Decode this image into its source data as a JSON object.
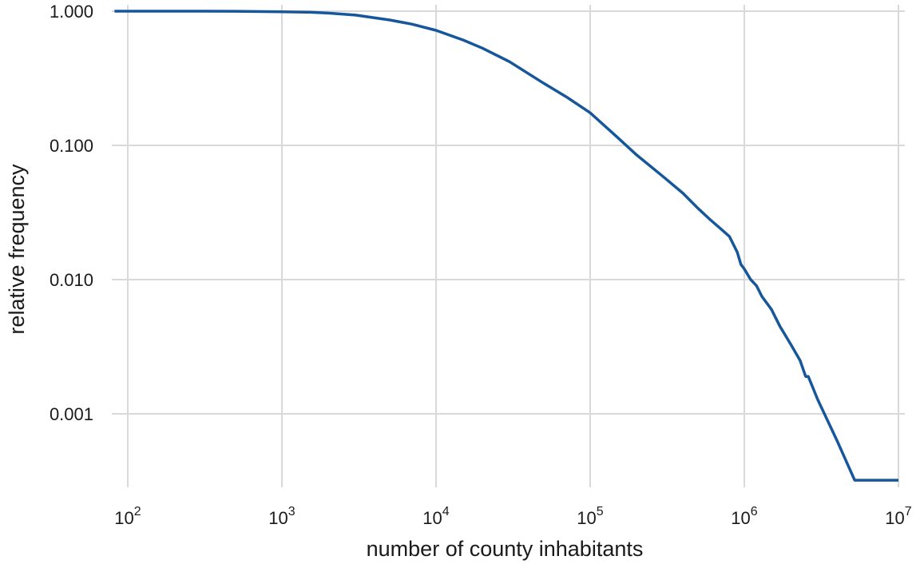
{
  "chart_data": {
    "type": "line",
    "xscale": "log",
    "yscale": "log",
    "xlabel": "number of county inhabitants",
    "ylabel": "relative frequency",
    "xlim": [
      50,
      10000000
    ],
    "ylim": [
      0.00026,
      1.0
    ],
    "grid": true,
    "x_ticks": [
      {
        "value": 100,
        "base": "10",
        "exp": "2"
      },
      {
        "value": 1000,
        "base": "10",
        "exp": "3"
      },
      {
        "value": 10000,
        "base": "10",
        "exp": "4"
      },
      {
        "value": 100000,
        "base": "10",
        "exp": "5"
      },
      {
        "value": 1000000,
        "base": "10",
        "exp": "6"
      },
      {
        "value": 10000000,
        "base": "10",
        "exp": "7"
      }
    ],
    "y_ticks": [
      {
        "value": 1.0,
        "label": "1.000"
      },
      {
        "value": 0.1,
        "label": "0.100"
      },
      {
        "value": 0.01,
        "label": "0.010"
      },
      {
        "value": 0.001,
        "label": "0.001"
      }
    ],
    "series": [
      {
        "color": "#16579c",
        "x": [
          82,
          200,
          500,
          1000,
          1500,
          2000,
          3000,
          5000,
          7000,
          10000,
          15000,
          20000,
          30000,
          50000,
          70000,
          100000,
          150000,
          200000,
          300000,
          400000,
          500000,
          600000,
          700000,
          800000,
          900000,
          950000,
          1000000,
          1100000,
          1200000,
          1300000,
          1500000,
          1700000,
          2000000,
          2300000,
          2500000,
          2600000,
          3000000,
          4000000,
          5200000,
          10000000
        ],
        "y": [
          1.0,
          1.0,
          0.998,
          0.99,
          0.982,
          0.968,
          0.935,
          0.86,
          0.8,
          0.72,
          0.61,
          0.53,
          0.42,
          0.29,
          0.23,
          0.175,
          0.115,
          0.085,
          0.058,
          0.044,
          0.034,
          0.028,
          0.024,
          0.021,
          0.016,
          0.013,
          0.012,
          0.01,
          0.009,
          0.0075,
          0.006,
          0.0045,
          0.0033,
          0.0025,
          0.0019,
          0.0019,
          0.00127,
          0.00063,
          0.00032,
          0.00032
        ]
      }
    ]
  }
}
